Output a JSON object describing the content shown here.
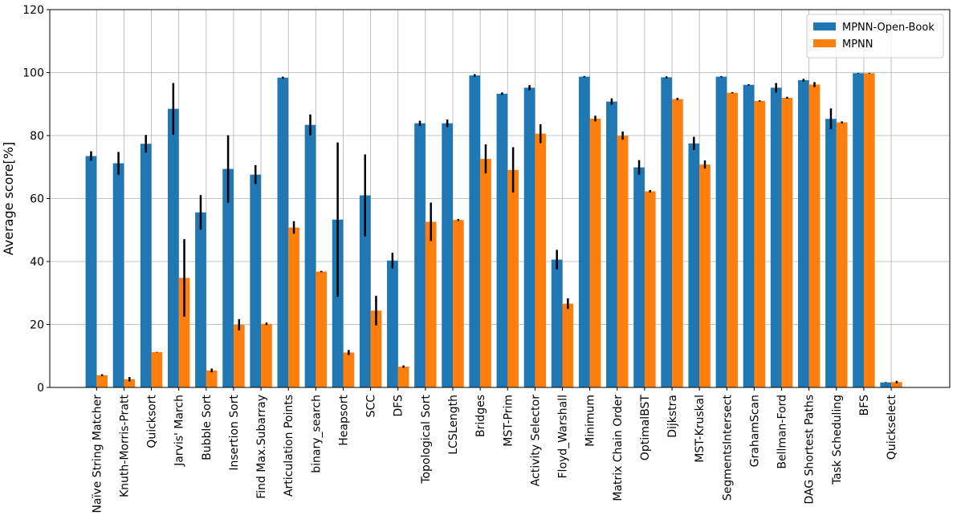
{
  "chart_data": {
    "type": "bar",
    "title": "",
    "xlabel": "",
    "ylabel": "Average score[%]",
    "ylim": [
      0,
      120
    ],
    "yticks": [
      0,
      20,
      40,
      60,
      80,
      100,
      120
    ],
    "grid": true,
    "legend_position": "top-right",
    "categories": [
      "Naïve String Matcher",
      "Knuth-Morris-Pratt",
      "Quicksort",
      "Jarvis' March",
      "Bubble Sort",
      "Insertion Sort",
      "Find Max.Subarray",
      "Articulation Points",
      "binary_search",
      "Heapsort",
      "SCC",
      "DFS",
      "Topological Sort",
      "LCSLength",
      "Bridges",
      "MST-Prim",
      "Activity Selector",
      "Floyd_Warshall",
      "Minimum",
      "Matrix Chain Order",
      "OptimalBST",
      "Dijkstra",
      "MST-Kruskal",
      "SegmentsIntersect",
      "GrahamScan",
      "Bellman-Ford",
      "DAG Shortest Paths",
      "Task Scheduling",
      "BFS",
      "Quickselect"
    ],
    "series": [
      {
        "name": "MPNN-Open-Book",
        "color": "#1f77b4",
        "values": [
          73.5,
          71.2,
          77.4,
          88.5,
          55.6,
          69.4,
          67.6,
          98.4,
          83.4,
          53.3,
          61.0,
          40.3,
          83.9,
          83.9,
          99.1,
          93.3,
          95.2,
          40.6,
          98.7,
          90.8,
          69.9,
          98.5,
          77.5,
          98.7,
          96.1,
          95.2,
          97.6,
          85.3,
          99.8,
          1.6
        ],
        "errors": [
          1.5,
          3.6,
          2.8,
          8.2,
          5.5,
          10.7,
          3.0,
          0.3,
          3.3,
          24.5,
          13.0,
          2.5,
          0.8,
          1.2,
          0.4,
          0.4,
          0.8,
          3.1,
          0.2,
          1.0,
          2.3,
          0.3,
          2.1,
          0.2,
          0.2,
          1.5,
          0.4,
          3.3,
          0.1,
          0.1
        ]
      },
      {
        "name": "MPNN",
        "color": "#ff7f0e",
        "values": [
          3.9,
          2.6,
          11.2,
          34.8,
          5.4,
          19.9,
          20.2,
          50.8,
          36.8,
          11.1,
          24.4,
          6.6,
          52.6,
          53.2,
          72.6,
          69.1,
          80.6,
          26.6,
          85.4,
          80.0,
          62.3,
          91.6,
          70.8,
          93.6,
          91.0,
          92.0,
          96.2,
          84.2,
          99.8,
          1.7
        ],
        "errors": [
          0.3,
          0.7,
          0.1,
          12.3,
          0.6,
          1.8,
          0.4,
          2.0,
          0.2,
          0.8,
          4.7,
          0.4,
          6.1,
          0.3,
          4.6,
          7.2,
          3.0,
          1.7,
          0.9,
          1.3,
          0.4,
          0.4,
          1.3,
          0.2,
          0.2,
          0.3,
          0.8,
          0.3,
          0.1,
          0.4
        ]
      }
    ]
  }
}
